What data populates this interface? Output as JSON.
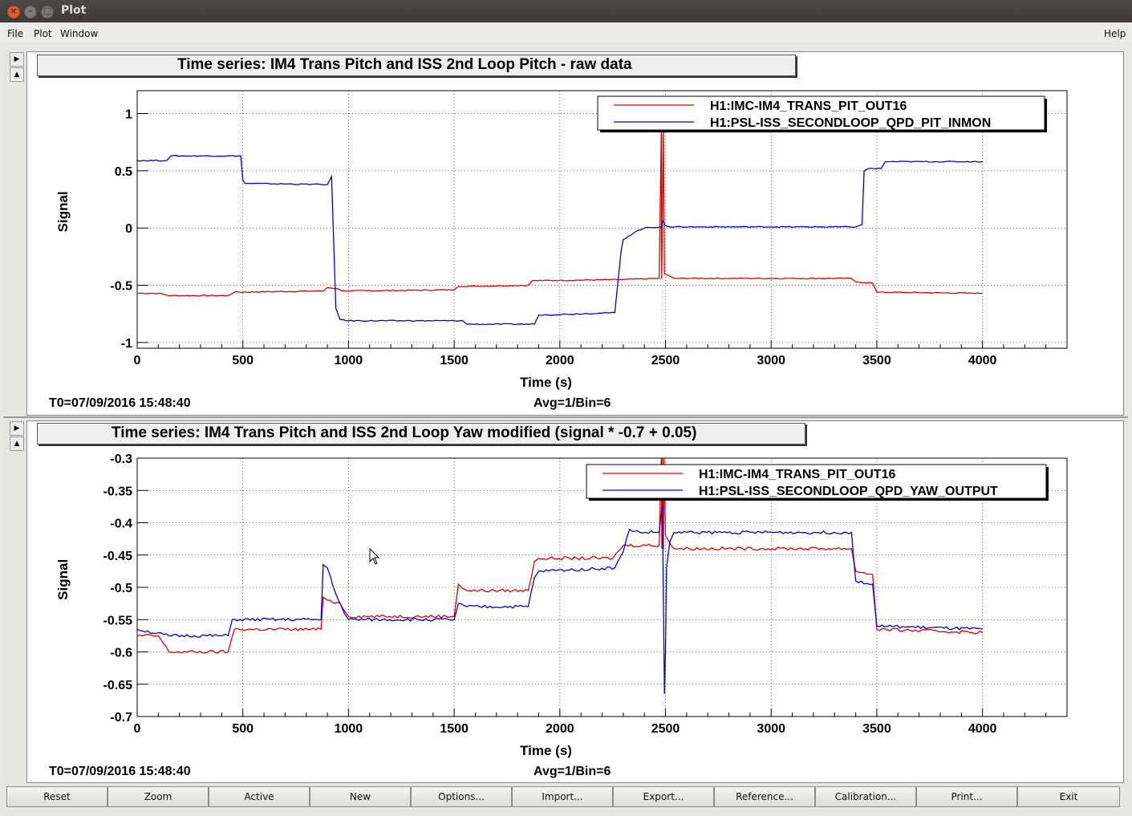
{
  "window": {
    "title": "Plot"
  },
  "menu": {
    "file": "File",
    "plot": "Plot",
    "window": "Window",
    "help": "Help"
  },
  "buttons": [
    "Reset",
    "Zoom",
    "Active",
    "New",
    "Options...",
    "Import...",
    "Export...",
    "Reference...",
    "Calibration...",
    "Print...",
    "Exit"
  ],
  "colors": {
    "red": "#e00000",
    "blue": "#0000e0"
  },
  "chart_data": [
    {
      "type": "line",
      "title": "Time series: IM4 Trans Pitch and ISS 2nd Loop Pitch - raw data",
      "xlabel": "Time (s)",
      "ylabel": "Signal",
      "xlim": [
        0,
        4400
      ],
      "ylim": [
        -1.05,
        1.2
      ],
      "xticks": [
        0,
        500,
        1000,
        1500,
        2000,
        2500,
        3000,
        3500,
        4000
      ],
      "yticks": [
        -1,
        -0.5,
        0,
        0.5,
        1
      ],
      "ytick_labels": [
        "-1",
        "-0.5",
        "0",
        "0.5",
        "1"
      ],
      "grid": true,
      "legend_placement": "top-right",
      "footer_left": "T0=07/09/2016 15:48:40",
      "footer_center": "Avg=1/Bin=6",
      "series": [
        {
          "name": "H1:IMC-IM4_TRANS_PIT_OUT16",
          "color": "red",
          "x": [
            0,
            100,
            150,
            430,
            460,
            880,
            900,
            950,
            970,
            1500,
            1520,
            1850,
            1870,
            2300,
            2470,
            2480,
            2482,
            2490,
            2495,
            2540,
            3380,
            3400,
            3480,
            3500,
            4000
          ],
          "y": [
            -0.57,
            -0.57,
            -0.59,
            -0.59,
            -0.56,
            -0.55,
            -0.52,
            -0.53,
            -0.55,
            -0.54,
            -0.51,
            -0.5,
            -0.46,
            -0.45,
            -0.44,
            0.85,
            -0.44,
            0.85,
            -0.4,
            -0.44,
            -0.44,
            -0.47,
            -0.48,
            -0.56,
            -0.57
          ]
        },
        {
          "name": "H1:PSL-ISS_SECONDLOOP_QPD_PIT_INMON",
          "color": "blue",
          "x": [
            0,
            140,
            160,
            490,
            500,
            510,
            900,
            920,
            940,
            960,
            1000,
            1540,
            1560,
            1880,
            1900,
            2260,
            2290,
            2300,
            2360,
            2400,
            2480,
            2485,
            2500,
            2520,
            3400,
            3430,
            3440,
            3460,
            3520,
            3540,
            4000
          ],
          "y": [
            0.59,
            0.59,
            0.63,
            0.63,
            0.42,
            0.39,
            0.38,
            0.45,
            -0.7,
            -0.8,
            -0.81,
            -0.81,
            -0.84,
            -0.84,
            -0.76,
            -0.74,
            -0.2,
            -0.1,
            -0.03,
            0.0,
            0.01,
            0.07,
            0.02,
            0.01,
            0.01,
            0.03,
            0.5,
            0.52,
            0.52,
            0.58,
            0.58
          ]
        }
      ]
    },
    {
      "type": "line",
      "title": "Time series: IM4 Trans Pitch and ISS 2nd Loop Yaw modified (signal * -0.7 + 0.05)",
      "xlabel": "Time (s)",
      "ylabel": "Signal",
      "xlim": [
        0,
        4400
      ],
      "ylim": [
        -0.7,
        -0.3
      ],
      "xticks": [
        0,
        500,
        1000,
        1500,
        2000,
        2500,
        3000,
        3500,
        4000
      ],
      "yticks": [
        -0.7,
        -0.65,
        -0.6,
        -0.55,
        -0.5,
        -0.45,
        -0.4,
        -0.35,
        -0.3
      ],
      "ytick_labels": [
        "-0.7",
        "-0.65",
        "-0.6",
        "-0.55",
        "-0.5",
        "-0.45",
        "-0.4",
        "-0.35",
        "-0.3"
      ],
      "grid": true,
      "legend_placement": "top-right",
      "footer_left": "T0=07/09/2016 15:48:40",
      "footer_center": "Avg=1/Bin=6",
      "series": [
        {
          "name": "H1:IMC-IM4_TRANS_PIT_OUT16",
          "color": "red",
          "x": [
            0,
            100,
            150,
            430,
            460,
            870,
            880,
            900,
            960,
            1000,
            1500,
            1520,
            1560,
            1850,
            1880,
            1900,
            2250,
            2300,
            2470,
            2480,
            2483,
            2486,
            2490,
            2493,
            2500,
            2540,
            3380,
            3400,
            3480,
            3500,
            4000
          ],
          "y": [
            -0.575,
            -0.575,
            -0.6,
            -0.6,
            -0.565,
            -0.565,
            -0.515,
            -0.52,
            -0.525,
            -0.545,
            -0.545,
            -0.495,
            -0.505,
            -0.505,
            -0.46,
            -0.455,
            -0.455,
            -0.435,
            -0.435,
            -0.3,
            -0.44,
            -0.3,
            -0.44,
            -0.3,
            -0.42,
            -0.44,
            -0.44,
            -0.475,
            -0.48,
            -0.565,
            -0.57
          ]
        },
        {
          "name": "H1:PSL-ISS_SECONDLOOP_QPD_YAW_OUTPUT",
          "color": "blue",
          "x": [
            0,
            150,
            430,
            450,
            870,
            880,
            900,
            940,
            980,
            1000,
            1500,
            1520,
            1560,
            1850,
            1880,
            1900,
            2260,
            2300,
            2330,
            2380,
            2470,
            2485,
            2495,
            2500,
            2505,
            2520,
            2540,
            3380,
            3400,
            3480,
            3500,
            4000
          ],
          "y": [
            -0.565,
            -0.575,
            -0.575,
            -0.55,
            -0.55,
            -0.465,
            -0.47,
            -0.51,
            -0.54,
            -0.55,
            -0.55,
            -0.525,
            -0.53,
            -0.53,
            -0.485,
            -0.475,
            -0.47,
            -0.445,
            -0.41,
            -0.415,
            -0.415,
            -0.37,
            -0.665,
            -0.6,
            -0.47,
            -0.43,
            -0.415,
            -0.415,
            -0.49,
            -0.495,
            -0.56,
            -0.565
          ]
        }
      ]
    }
  ]
}
